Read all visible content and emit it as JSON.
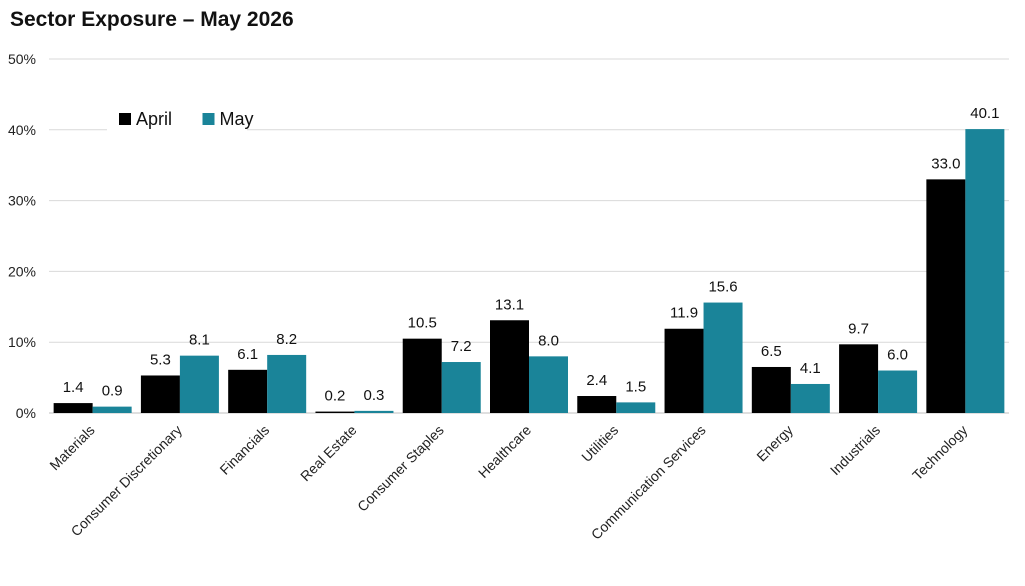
{
  "chart_data": {
    "type": "bar",
    "title": "Sector Exposure – May 2026",
    "xlabel": "",
    "ylabel": "",
    "ylim": [
      0,
      50
    ],
    "yticks": [
      "0%",
      "10%",
      "20%",
      "30%",
      "40%",
      "50%"
    ],
    "ytick_values": [
      0,
      10,
      20,
      30,
      40,
      50
    ],
    "grid": true,
    "legend_position": "top-left",
    "categories": [
      "Materials",
      "Consumer Discretionary",
      "Financials",
      "Real Estate",
      "Consumer Staples",
      "Healthcare",
      "Utilities",
      "Communication Services",
      "Energy",
      "Industrials",
      "Technology"
    ],
    "series": [
      {
        "name": "April",
        "color": "#000000",
        "values": [
          1.4,
          5.3,
          6.1,
          0.2,
          10.5,
          13.1,
          2.4,
          11.9,
          6.5,
          9.7,
          33.0
        ],
        "labels": [
          "1.4",
          "5.3",
          "6.1",
          "0.2",
          "10.5",
          "13.1",
          "2.4",
          "11.9",
          "6.5",
          "9.7",
          "33.0"
        ]
      },
      {
        "name": "May",
        "color": "#1a8499",
        "values": [
          0.9,
          8.1,
          8.2,
          0.3,
          7.2,
          8.0,
          1.5,
          15.6,
          4.1,
          6.0,
          40.1
        ],
        "labels": [
          "0.9",
          "8.1",
          "8.2",
          "0.3",
          "7.2",
          "8.0",
          "1.5",
          "15.6",
          "4.1",
          "6.0",
          "40.1"
        ]
      }
    ]
  }
}
